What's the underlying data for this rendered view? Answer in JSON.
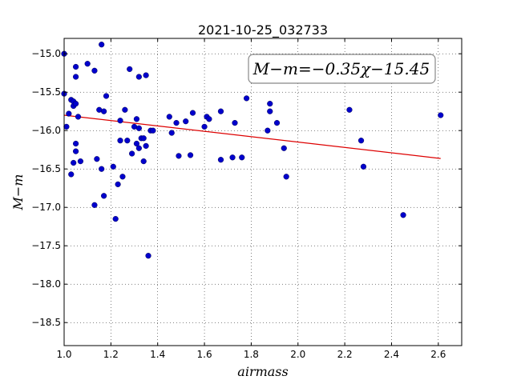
{
  "chart_data": {
    "type": "scatter",
    "title": "2021-10-25_032733",
    "xlabel": "airmass",
    "ylabel": "M−m",
    "xlim": [
      1.0,
      2.7
    ],
    "ylim": [
      -18.8,
      -14.8
    ],
    "y_inverted": false,
    "grid": true,
    "x_ticks": [
      1.0,
      1.2,
      1.4,
      1.6,
      1.8,
      2.0,
      2.2,
      2.4,
      2.6
    ],
    "x_tick_labels": [
      "1.0",
      "1.2",
      "1.4",
      "1.6",
      "1.8",
      "2.0",
      "2.2",
      "2.4",
      "2.6"
    ],
    "y_ticks": [
      -15.0,
      -15.5,
      -16.0,
      -16.5,
      -17.0,
      -17.5,
      -18.0,
      -18.5
    ],
    "y_tick_labels": [
      "−15.0",
      "−15.5",
      "−16.0",
      "−16.5",
      "−17.0",
      "−17.5",
      "−18.0",
      "−18.5"
    ],
    "annotation": "M−m=−0.35χ−15.45",
    "marker_color": "#0000cc",
    "fit_color": "#dd0000",
    "fit": {
      "slope": -0.35,
      "intercept": -15.45,
      "x_range": [
        1.0,
        2.61
      ]
    },
    "points": [
      {
        "x": 1.0,
        "y": -15.0
      },
      {
        "x": 1.0,
        "y": -15.52
      },
      {
        "x": 1.01,
        "y": -15.95
      },
      {
        "x": 1.02,
        "y": -15.78
      },
      {
        "x": 1.03,
        "y": -16.57
      },
      {
        "x": 1.03,
        "y": -15.6
      },
      {
        "x": 1.04,
        "y": -15.68
      },
      {
        "x": 1.04,
        "y": -15.62
      },
      {
        "x": 1.04,
        "y": -16.42
      },
      {
        "x": 1.05,
        "y": -15.3
      },
      {
        "x": 1.05,
        "y": -15.17
      },
      {
        "x": 1.05,
        "y": -15.65
      },
      {
        "x": 1.05,
        "y": -16.17
      },
      {
        "x": 1.05,
        "y": -16.27
      },
      {
        "x": 1.06,
        "y": -15.82
      },
      {
        "x": 1.07,
        "y": -16.4
      },
      {
        "x": 1.1,
        "y": -15.13
      },
      {
        "x": 1.13,
        "y": -15.22
      },
      {
        "x": 1.13,
        "y": -16.97
      },
      {
        "x": 1.14,
        "y": -16.37
      },
      {
        "x": 1.15,
        "y": -15.73
      },
      {
        "x": 1.16,
        "y": -16.5
      },
      {
        "x": 1.16,
        "y": -14.88
      },
      {
        "x": 1.17,
        "y": -16.85
      },
      {
        "x": 1.17,
        "y": -15.75
      },
      {
        "x": 1.18,
        "y": -15.55
      },
      {
        "x": 1.21,
        "y": -16.47
      },
      {
        "x": 1.22,
        "y": -17.15
      },
      {
        "x": 1.23,
        "y": -16.7
      },
      {
        "x": 1.24,
        "y": -16.13
      },
      {
        "x": 1.24,
        "y": -15.87
      },
      {
        "x": 1.25,
        "y": -16.6
      },
      {
        "x": 1.26,
        "y": -15.73
      },
      {
        "x": 1.27,
        "y": -16.13
      },
      {
        "x": 1.28,
        "y": -15.2
      },
      {
        "x": 1.29,
        "y": -16.3
      },
      {
        "x": 1.3,
        "y": -15.95
      },
      {
        "x": 1.31,
        "y": -15.85
      },
      {
        "x": 1.31,
        "y": -16.17
      },
      {
        "x": 1.32,
        "y": -16.23
      },
      {
        "x": 1.32,
        "y": -15.97
      },
      {
        "x": 1.32,
        "y": -15.3
      },
      {
        "x": 1.33,
        "y": -16.1
      },
      {
        "x": 1.34,
        "y": -16.4
      },
      {
        "x": 1.34,
        "y": -16.1
      },
      {
        "x": 1.35,
        "y": -16.2
      },
      {
        "x": 1.35,
        "y": -15.28
      },
      {
        "x": 1.36,
        "y": -17.63
      },
      {
        "x": 1.37,
        "y": -16.0
      },
      {
        "x": 1.38,
        "y": -16.0
      },
      {
        "x": 1.45,
        "y": -15.82
      },
      {
        "x": 1.46,
        "y": -16.03
      },
      {
        "x": 1.48,
        "y": -15.9
      },
      {
        "x": 1.49,
        "y": -16.33
      },
      {
        "x": 1.52,
        "y": -15.88
      },
      {
        "x": 1.54,
        "y": -16.32
      },
      {
        "x": 1.55,
        "y": -15.77
      },
      {
        "x": 1.6,
        "y": -15.95
      },
      {
        "x": 1.61,
        "y": -15.82
      },
      {
        "x": 1.62,
        "y": -15.85
      },
      {
        "x": 1.67,
        "y": -16.38
      },
      {
        "x": 1.67,
        "y": -15.75
      },
      {
        "x": 1.72,
        "y": -16.35
      },
      {
        "x": 1.73,
        "y": -15.9
      },
      {
        "x": 1.76,
        "y": -16.35
      },
      {
        "x": 1.78,
        "y": -15.58
      },
      {
        "x": 1.87,
        "y": -16.0
      },
      {
        "x": 1.88,
        "y": -15.75
      },
      {
        "x": 1.88,
        "y": -15.65
      },
      {
        "x": 1.91,
        "y": -15.9
      },
      {
        "x": 1.94,
        "y": -16.23
      },
      {
        "x": 1.95,
        "y": -16.6
      },
      {
        "x": 2.22,
        "y": -15.73
      },
      {
        "x": 2.27,
        "y": -16.13
      },
      {
        "x": 2.28,
        "y": -16.47
      },
      {
        "x": 2.45,
        "y": -17.1
      },
      {
        "x": 2.61,
        "y": -15.8
      }
    ]
  }
}
